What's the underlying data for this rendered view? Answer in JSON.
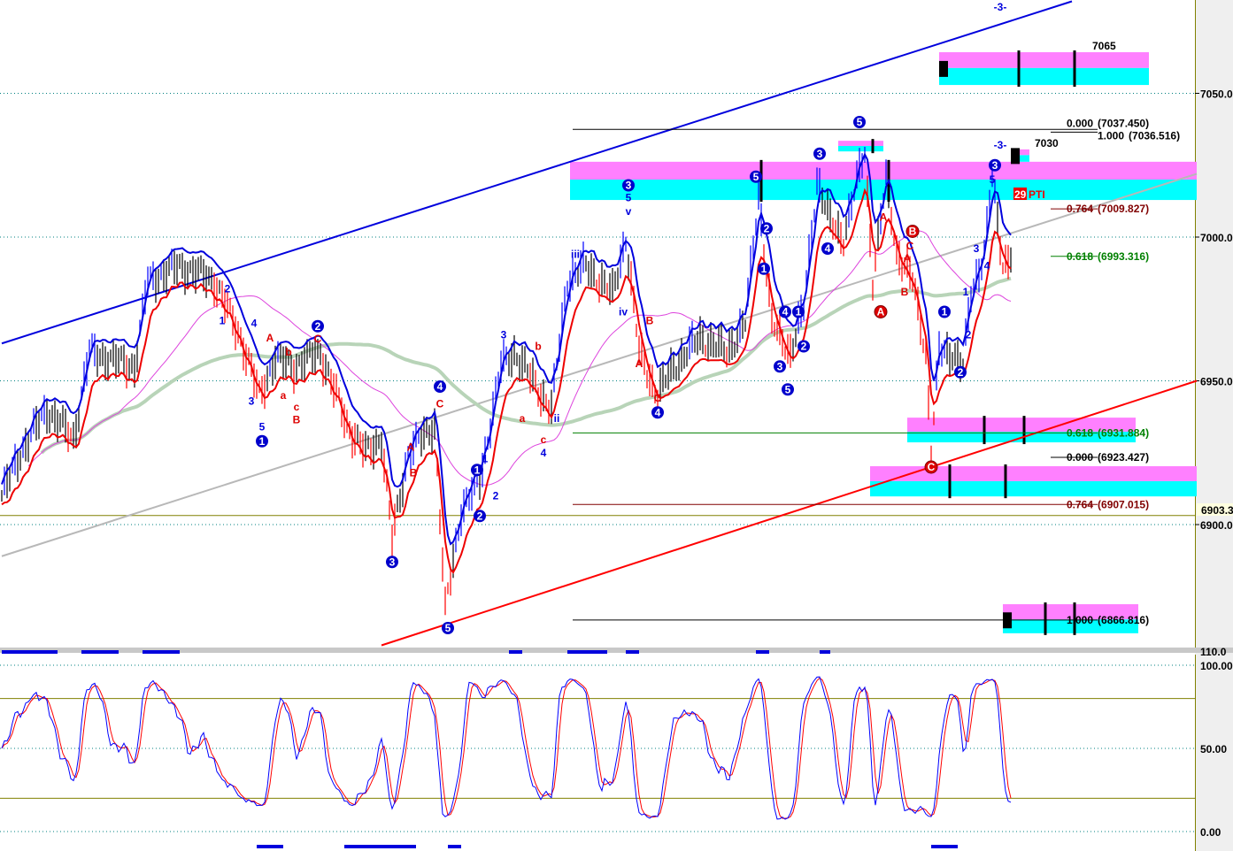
{
  "chart_data": {
    "type": "candlestick",
    "y_axis": {
      "ticks": [
        "7050.00",
        "7000.00",
        "6950.00",
        "6900.00"
      ],
      "range": [
        6845,
        7082
      ]
    },
    "last_price_tag": "6903.3",
    "last_price": 6903.3,
    "price_path": [
      [
        0,
        6910
      ],
      [
        7,
        6925
      ],
      [
        17,
        6940
      ],
      [
        27,
        6930
      ],
      [
        33,
        6960
      ],
      [
        50,
        6955
      ],
      [
        55,
        6985
      ],
      [
        67,
        6990
      ],
      [
        80,
        6985
      ],
      [
        90,
        6965
      ],
      [
        97,
        6945
      ],
      [
        103,
        6958
      ],
      [
        110,
        6955
      ],
      [
        120,
        6960
      ],
      [
        130,
        6935
      ],
      [
        137,
        6925
      ],
      [
        143,
        6930
      ],
      [
        147,
        6895
      ],
      [
        153,
        6925
      ],
      [
        163,
        6935
      ],
      [
        167,
        6870
      ],
      [
        173,
        6905
      ],
      [
        180,
        6915
      ],
      [
        188,
        6955
      ],
      [
        193,
        6960
      ],
      [
        200,
        6950
      ],
      [
        207,
        6940
      ],
      [
        213,
        6985
      ],
      [
        220,
        6990
      ],
      [
        230,
        6980
      ],
      [
        235,
        7000
      ],
      [
        240,
        6960
      ],
      [
        247,
        6945
      ],
      [
        253,
        6955
      ],
      [
        263,
        6965
      ],
      [
        273,
        6960
      ],
      [
        280,
        6970
      ],
      [
        285,
        7015
      ],
      [
        290,
        6970
      ],
      [
        297,
        6960
      ],
      [
        302,
        6975
      ],
      [
        307,
        7020
      ],
      [
        312,
        7005
      ],
      [
        317,
        7000
      ],
      [
        325,
        7030
      ],
      [
        328,
        6985
      ],
      [
        333,
        7020
      ],
      [
        337,
        6995
      ],
      [
        343,
        6985
      ],
      [
        348,
        6960
      ],
      [
        350,
        6925
      ],
      [
        353,
        6960
      ],
      [
        358,
        6960
      ],
      [
        362,
        6955
      ],
      [
        365,
        6980
      ],
      [
        370,
        6995
      ],
      [
        373,
        7020
      ],
      [
        377,
        6990
      ],
      [
        380,
        6995
      ]
    ],
    "trend_lines": [
      {
        "color": "#0000dd",
        "from": [
          0,
          6963
        ],
        "to": [
          403,
          7082
        ]
      },
      {
        "color": "#ff0000",
        "from": [
          143,
          6858
        ],
        "to": [
          450,
          6950
        ]
      },
      {
        "color": "#b8b8b8",
        "from": [
          0,
          6889
        ],
        "to": [
          450,
          7022
        ]
      }
    ],
    "fib_levels": [
      {
        "ratio": "0.000",
        "value": "(7037.450)",
        "price": 7037.45,
        "color": "#000000",
        "from": 215
      },
      {
        "ratio": "1.000",
        "value": "(7036.516)",
        "price": 7036.5,
        "color": "#000000",
        "from": 395
      },
      {
        "ratio": "0.764",
        "value": "(7009.827)",
        "price": 7009.8,
        "color": "#800000",
        "from": 395
      },
      {
        "ratio": "0.618",
        "value": "(6993.316)",
        "price": 6993.3,
        "color": "#008000",
        "from": 395
      },
      {
        "ratio": "0.618",
        "value": "(6931.884)",
        "price": 6931.9,
        "color": "#008000",
        "from": 215
      },
      {
        "ratio": "0.000",
        "value": "(6923.427)",
        "price": 6923.4,
        "color": "#000000",
        "from": 395
      },
      {
        "ratio": "0.764",
        "value": "(6907.015)",
        "price": 6907.0,
        "color": "#800000",
        "from": 215
      },
      {
        "ratio": "1.000",
        "value": "(6866.816)",
        "price": 6866.8,
        "color": "#000000",
        "from": 215
      }
    ],
    "zones": [
      {
        "bars": [
          353,
          432
        ],
        "prices": [
          7064.3,
          7058.8,
          7052.9
        ],
        "label": "7065",
        "ticks": [
          383,
          404
        ],
        "block": true
      },
      {
        "bars": [
          214,
          450
        ],
        "prices": [
          7026.2,
          7020,
          7012.9
        ],
        "ticks": [
          286,
          334
        ]
      },
      {
        "bars": [
          315,
          332
        ],
        "prices": [
          7033.5,
          7031.7,
          7029.8
        ],
        "ticks": [
          328
        ]
      },
      {
        "bars": [
          380,
          387
        ],
        "prices": [
          7030.5,
          7028.5,
          7026.2
        ],
        "label": "7030",
        "block": true
      },
      {
        "bars": [
          341,
          427
        ],
        "prices": [
          6937.2,
          6932.3,
          6928.6
        ],
        "ticks": [
          370,
          385
        ]
      },
      {
        "bars": [
          327,
          450
        ],
        "prices": [
          6920.3,
          6915.1,
          6909.8
        ],
        "ticks": [
          357,
          378
        ]
      },
      {
        "bars": [
          377,
          428
        ],
        "prices": [
          6872.3,
          6867.0,
          6862.2
        ],
        "ticks": [
          393,
          404
        ],
        "block": true
      }
    ],
    "wave_labels": [
      {
        "t": "1",
        "x": 98,
        "p": 6929,
        "s": "cb"
      },
      {
        "t": "2",
        "x": 119,
        "p": 6969,
        "s": "cb"
      },
      {
        "t": "3",
        "x": 147,
        "p": 6887,
        "s": "cb"
      },
      {
        "t": "4",
        "x": 165,
        "p": 6948,
        "s": "cb"
      },
      {
        "t": "5",
        "x": 168,
        "p": 6864,
        "s": "cb"
      },
      {
        "t": "1",
        "x": 179,
        "p": 6919,
        "s": "cb"
      },
      {
        "t": "2",
        "x": 180,
        "p": 6903,
        "s": "cb"
      },
      {
        "t": "3",
        "x": 236,
        "p": 7018,
        "s": "cb"
      },
      {
        "t": "4",
        "x": 247,
        "p": 6939,
        "s": "cb"
      },
      {
        "t": "5",
        "x": 284,
        "p": 7021,
        "s": "cb"
      },
      {
        "t": "2",
        "x": 288,
        "p": 7003,
        "s": "cb"
      },
      {
        "t": "1",
        "x": 287,
        "p": 6989,
        "s": "cb"
      },
      {
        "t": "4",
        "x": 295,
        "p": 6974,
        "s": "cb"
      },
      {
        "t": "1",
        "x": 300,
        "p": 6974,
        "s": "cb"
      },
      {
        "t": "3",
        "x": 293,
        "p": 6955,
        "s": "cb"
      },
      {
        "t": "2",
        "x": 302,
        "p": 6962,
        "s": "cb"
      },
      {
        "t": "5",
        "x": 296,
        "p": 6947,
        "s": "cb"
      },
      {
        "t": "3",
        "x": 308,
        "p": 7029,
        "s": "cb"
      },
      {
        "t": "4",
        "x": 311,
        "p": 6996,
        "s": "cb"
      },
      {
        "t": "5",
        "x": 323,
        "p": 7040,
        "s": "cb"
      },
      {
        "t": "1",
        "x": 355,
        "p": 6974,
        "s": "cb"
      },
      {
        "t": "2",
        "x": 361,
        "p": 6953,
        "s": "cb"
      },
      {
        "t": "3",
        "x": 374,
        "p": 7025,
        "s": "cb"
      },
      {
        "t": "A",
        "x": 331,
        "p": 6974,
        "s": "cr"
      },
      {
        "t": "B",
        "x": 343,
        "p": 7002,
        "s": "cr"
      },
      {
        "t": "C",
        "x": 350,
        "p": 6920,
        "s": "cr"
      },
      {
        "t": "1",
        "x": 83,
        "p": 6971,
        "s": "b"
      },
      {
        "t": "2",
        "x": 85,
        "p": 6982,
        "s": "b"
      },
      {
        "t": "3",
        "x": 94,
        "p": 6943,
        "s": "b"
      },
      {
        "t": "4",
        "x": 95,
        "p": 6970,
        "s": "b"
      },
      {
        "t": "5",
        "x": 98,
        "p": 6934,
        "s": "b"
      },
      {
        "t": "3",
        "x": 189,
        "p": 6966,
        "s": "b"
      },
      {
        "t": "4",
        "x": 204,
        "p": 6925,
        "s": "b"
      },
      {
        "t": "v",
        "x": 236,
        "p": 7009,
        "s": "b"
      },
      {
        "t": "5",
        "x": 236,
        "p": 7014,
        "s": "b"
      },
      {
        "t": "iii",
        "x": 216,
        "p": 6994,
        "s": "b"
      },
      {
        "t": "iv",
        "x": 234,
        "p": 6974,
        "s": "b"
      },
      {
        "t": "ii",
        "x": 209,
        "p": 6937,
        "s": "b"
      },
      {
        "t": "1",
        "x": 182,
        "p": 6923,
        "s": "b"
      },
      {
        "t": "2",
        "x": 186,
        "p": 6910,
        "s": "b"
      },
      {
        "t": "3",
        "x": 367,
        "p": 6996,
        "s": "b"
      },
      {
        "t": "4",
        "x": 371,
        "p": 6990,
        "s": "b"
      },
      {
        "t": "1",
        "x": 363,
        "p": 6981,
        "s": "b"
      },
      {
        "t": "5",
        "x": 373,
        "p": 7020,
        "s": "b"
      },
      {
        "t": "2",
        "x": 364,
        "p": 6966,
        "s": "b"
      },
      {
        "t": "-3-",
        "x": 376,
        "p": 7080,
        "s": "b"
      },
      {
        "t": "-3-",
        "x": 376,
        "p": 7032,
        "s": "b"
      },
      {
        "t": "A",
        "x": 101,
        "p": 6965,
        "s": "r"
      },
      {
        "t": "b",
        "x": 108,
        "p": 6960,
        "s": "r"
      },
      {
        "t": "a",
        "x": 106,
        "p": 6945,
        "s": "r"
      },
      {
        "t": "c",
        "x": 111,
        "p": 6941,
        "s": "r"
      },
      {
        "t": "B",
        "x": 111,
        "p": 6938,
        "s": "r"
      },
      {
        "t": "C",
        "x": 119,
        "p": 6965,
        "s": "r"
      },
      {
        "t": "A",
        "x": 154,
        "p": 6927,
        "s": "r"
      },
      {
        "t": "B",
        "x": 155,
        "p": 6918,
        "s": "r"
      },
      {
        "t": "C",
        "x": 165,
        "p": 6942,
        "s": "r"
      },
      {
        "t": "b",
        "x": 202,
        "p": 6962,
        "s": "r"
      },
      {
        "t": "a",
        "x": 196,
        "p": 6937,
        "s": "r"
      },
      {
        "t": "c",
        "x": 204,
        "p": 6928,
        "s": "r"
      },
      {
        "t": "A",
        "x": 240,
        "p": 6956,
        "s": "r"
      },
      {
        "t": "B",
        "x": 244,
        "p": 6971,
        "s": "r"
      },
      {
        "t": "C",
        "x": 247,
        "p": 6944,
        "s": "r"
      },
      {
        "t": "A",
        "x": 332,
        "p": 7007,
        "s": "r"
      },
      {
        "t": "C",
        "x": 342,
        "p": 6997,
        "s": "r"
      },
      {
        "t": "A",
        "x": 341,
        "p": 6993,
        "s": "r"
      },
      {
        "t": "B",
        "x": 340,
        "p": 6981,
        "s": "r"
      }
    ],
    "pti_badge": {
      "count": "29",
      "label": "PTI"
    },
    "oscillator": {
      "ticks": [
        "100.00",
        "50.00",
        "0.00"
      ],
      "top_tag": "110.0",
      "range": [
        0,
        100
      ],
      "levels": [
        80,
        20
      ],
      "k_color": "#0000ff",
      "d_color": "#ff0000"
    },
    "signal_strip_top": [
      [
        0,
        21
      ],
      [
        30,
        44
      ],
      [
        53,
        67
      ],
      [
        191,
        196
      ],
      [
        213,
        228
      ],
      [
        235,
        240
      ],
      [
        284,
        289
      ],
      [
        308,
        312
      ]
    ],
    "signal_strip_bottom": [
      [
        96,
        106
      ],
      [
        129,
        156
      ],
      [
        168,
        173
      ],
      [
        350,
        360
      ]
    ],
    "colors": {
      "up": "#0000ff",
      "down": "#ff0000",
      "neutral": "#000000",
      "ma_slow": "#b8d4b8",
      "ma_mid": "#dd44dd",
      "zone_pink": "#ff80ff",
      "zone_cyan": "#00ffff"
    }
  }
}
